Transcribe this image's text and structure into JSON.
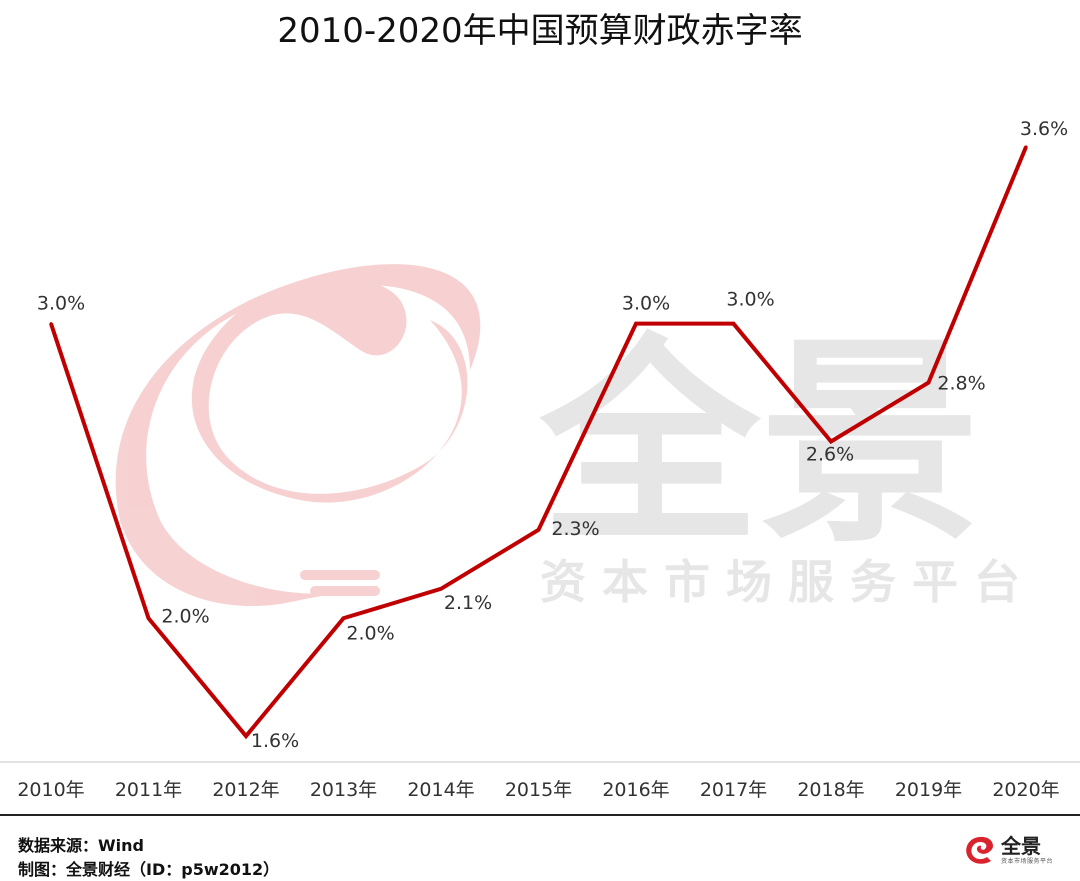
{
  "chart_data": {
    "type": "line",
    "title": "2010-2020年中国预算财政赤字率",
    "categories": [
      "2010年",
      "2011年",
      "2012年",
      "2013年",
      "2014年",
      "2015年",
      "2016年",
      "2017年",
      "2018年",
      "2019年",
      "2020年"
    ],
    "values": [
      3.0,
      2.0,
      1.6,
      2.0,
      2.1,
      2.3,
      3.0,
      3.0,
      2.6,
      2.8,
      3.6
    ],
    "labels": [
      "3.0%",
      "2.0%",
      "1.6%",
      "2.0%",
      "2.1%",
      "2.3%",
      "3.0%",
      "3.0%",
      "2.6%",
      "2.8%",
      "3.6%"
    ],
    "ylim": [
      1.4,
      3.8
    ],
    "grid": false,
    "legend": "none",
    "line_color": "#c00000"
  },
  "watermark": {
    "brand": "全景",
    "slogan": "资本市场服务平台",
    "logo_color": "#f6c9c9",
    "text_color": "#e6e6e6"
  },
  "footer": {
    "source": "数据来源：Wind",
    "maker": "制图：全景财经（ID：p5w2012）"
  },
  "brand_logo": {
    "name": "全景",
    "tagline": "资本市场服务平台",
    "icon_color": "#d9232d"
  }
}
